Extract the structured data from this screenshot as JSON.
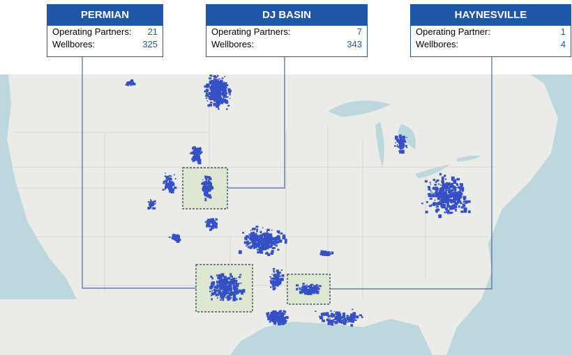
{
  "boxes": [
    {
      "title": "PERMIAN",
      "rows": [
        {
          "label": "Operating Partners:",
          "value": 21
        },
        {
          "label": "Wellbores:",
          "value": 325
        }
      ]
    },
    {
      "title": "DJ BASIN",
      "rows": [
        {
          "label": "Operating Partners:",
          "value": 7
        },
        {
          "label": "Wellbores:",
          "value": 343
        }
      ]
    },
    {
      "title": "HAYNESVILLE",
      "rows": [
        {
          "label": "Operating Partner:",
          "value": 1
        },
        {
          "label": "Wellbores:",
          "value": 4
        }
      ]
    }
  ]
}
